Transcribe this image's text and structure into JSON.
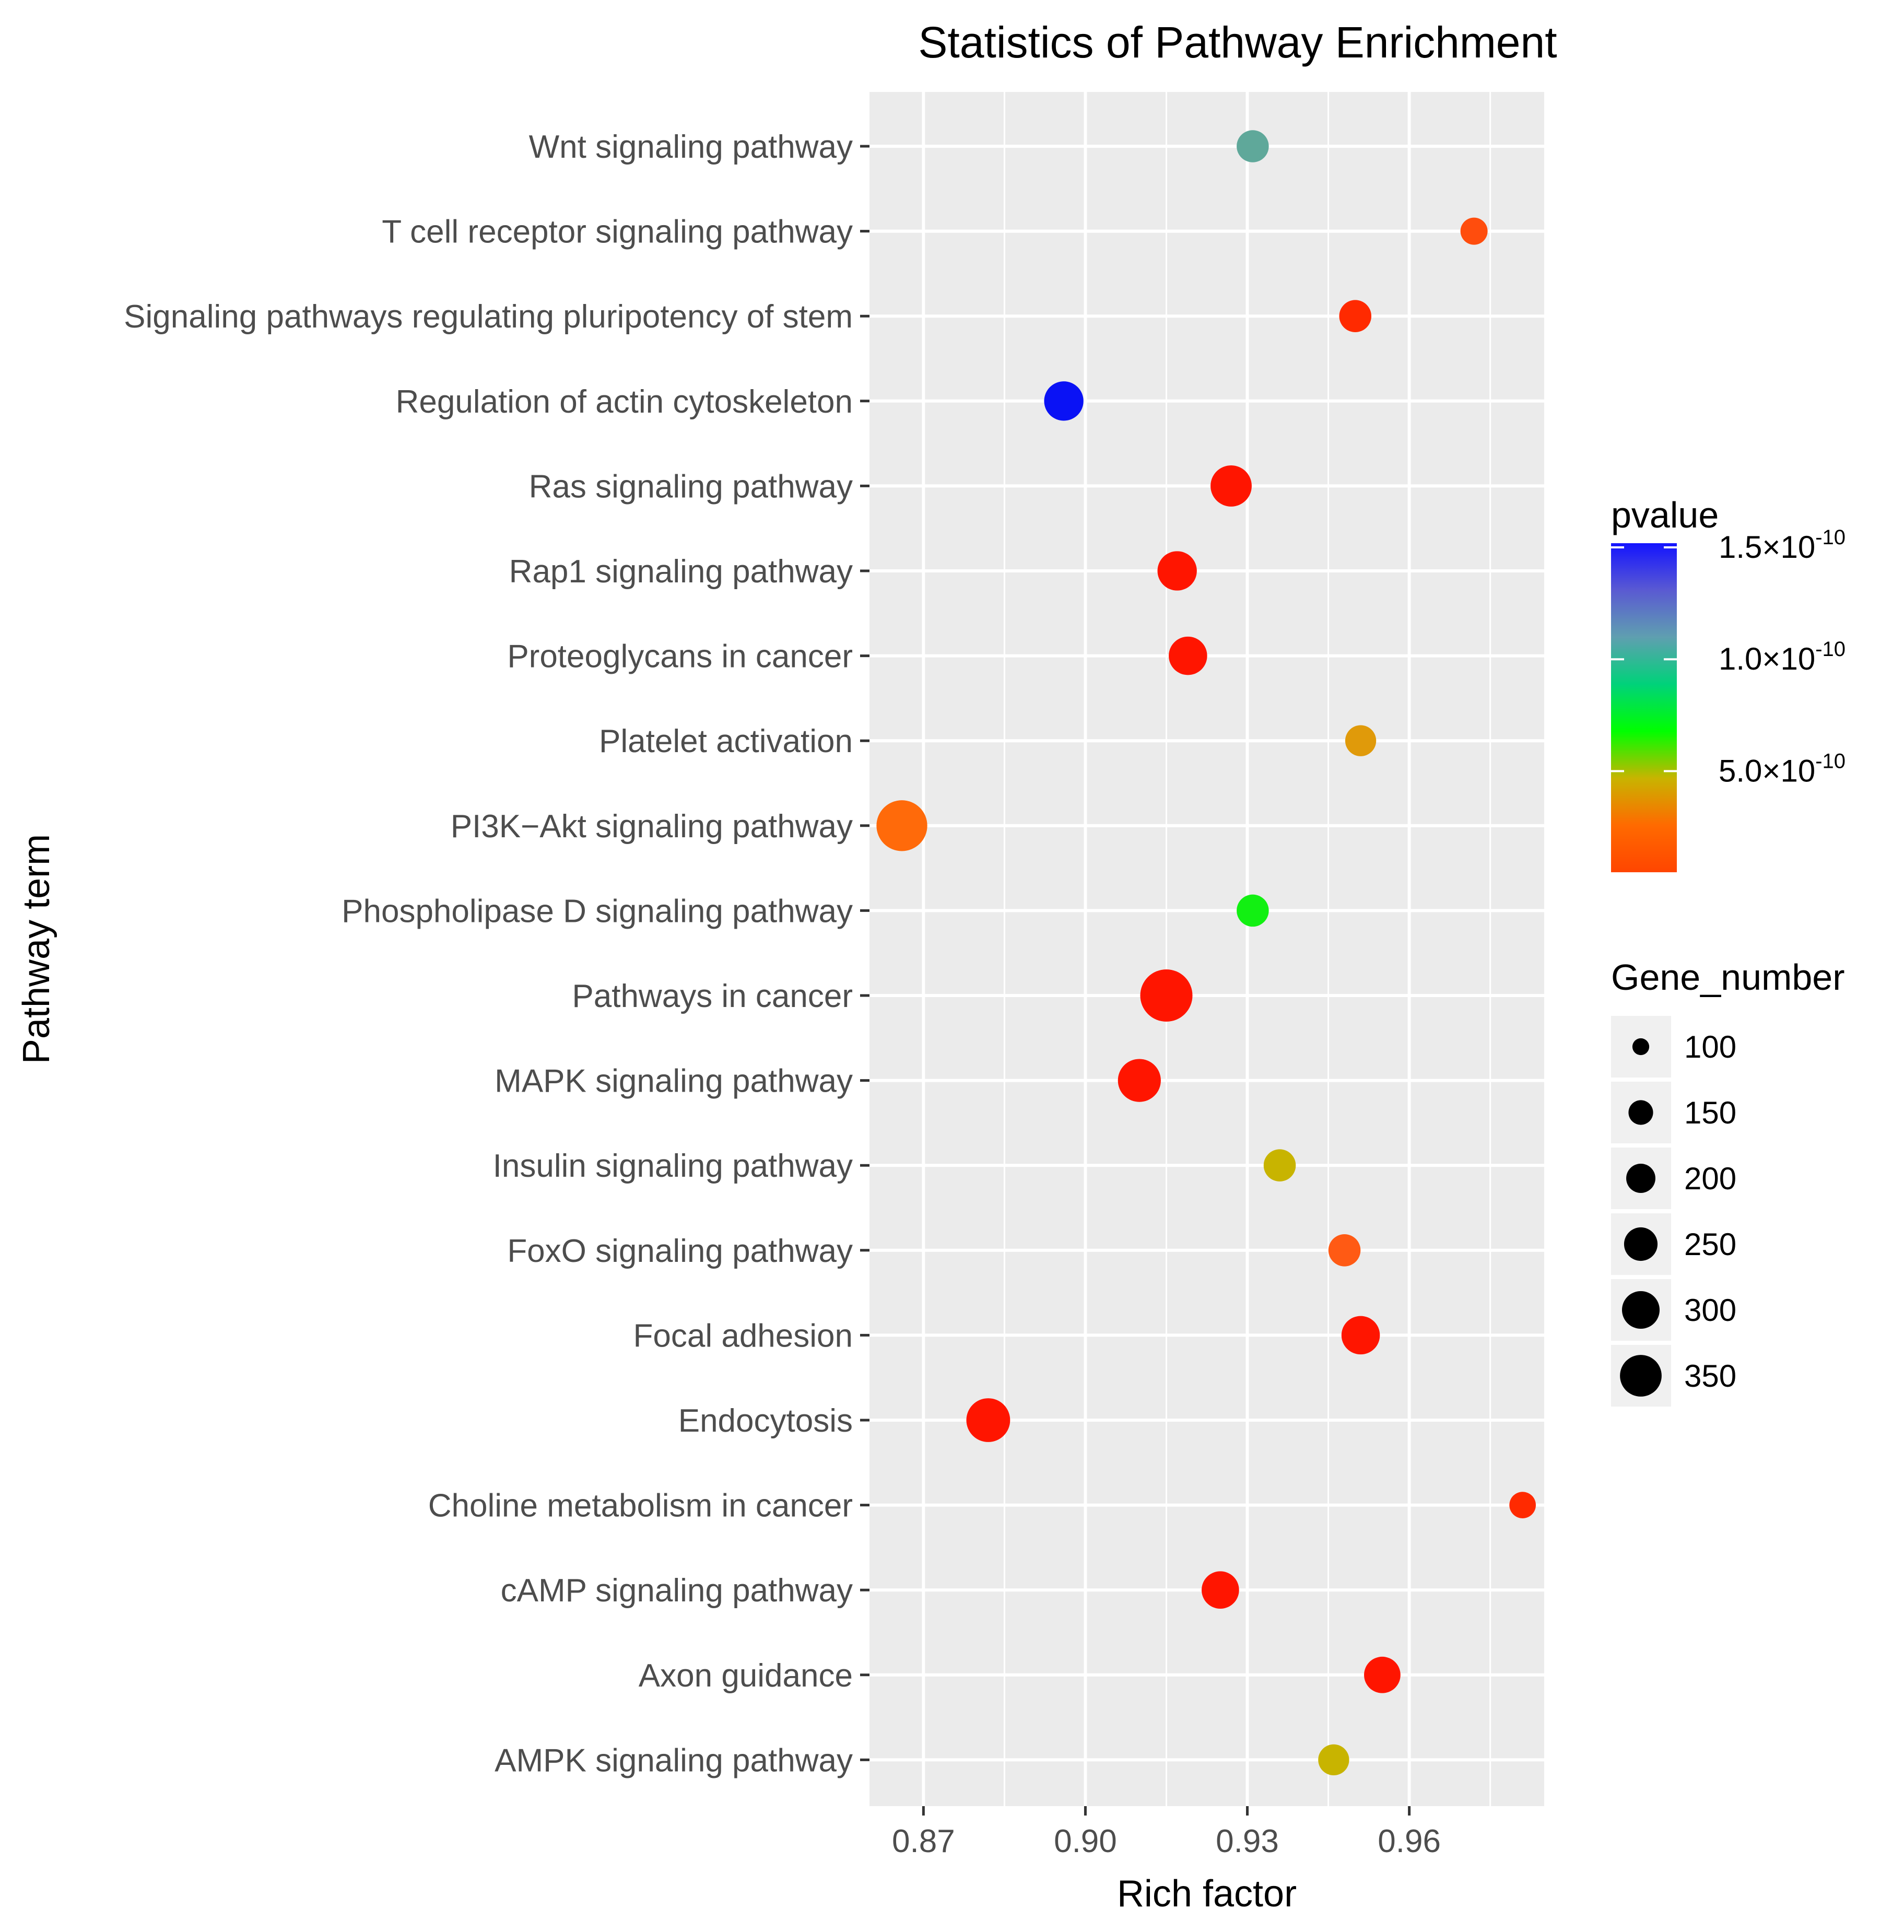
{
  "chart_data": {
    "type": "scatter",
    "title": "Statistics of Pathway Enrichment",
    "xlabel": "Rich factor",
    "ylabel": "Pathway term",
    "xlim": [
      0.86,
      0.985
    ],
    "xticks": [
      0.87,
      0.9,
      0.93,
      0.96
    ],
    "xtick_labels": [
      "0.87",
      "0.90",
      "0.93",
      "0.96"
    ],
    "grid": true,
    "categories": [
      "Wnt signaling pathway",
      "T cell receptor signaling pathway",
      "Signaling pathways regulating pluripotency of stem",
      "Regulation of actin cytoskeleton",
      "Ras signaling pathway",
      "Rap1 signaling pathway",
      "Proteoglycans in cancer",
      "Platelet activation",
      "PI3K−Akt signaling pathway",
      "Phospholipase D signaling pathway",
      "Pathways in cancer",
      "MAPK signaling pathway",
      "Insulin signaling pathway",
      "FoxO signaling pathway",
      "Focal adhesion",
      "Endocytosis",
      "Choline metabolism in cancer",
      "cAMP signaling pathway",
      "Axon guidance",
      "AMPK signaling pathway"
    ],
    "points": [
      {
        "pathway": "Wnt signaling pathway",
        "rich_factor": 0.931,
        "gene_number": 140,
        "color": "#5fa89a"
      },
      {
        "pathway": "T cell receptor signaling pathway",
        "rich_factor": 0.972,
        "gene_number": 100,
        "color": "#ff4d0d"
      },
      {
        "pathway": "Signaling pathways regulating pluripotency of stem",
        "rich_factor": 0.95,
        "gene_number": 140,
        "color": "#ff2a00"
      },
      {
        "pathway": "Regulation of actin cytoskeleton",
        "rich_factor": 0.896,
        "gene_number": 210,
        "color": "#0a12f5"
      },
      {
        "pathway": "Ras signaling pathway",
        "rich_factor": 0.927,
        "gene_number": 230,
        "color": "#ff1500"
      },
      {
        "pathway": "Rap1 signaling pathway",
        "rich_factor": 0.917,
        "gene_number": 210,
        "color": "#ff1500"
      },
      {
        "pathway": "Proteoglycans in cancer",
        "rich_factor": 0.919,
        "gene_number": 200,
        "color": "#ff1500"
      },
      {
        "pathway": "Platelet activation",
        "rich_factor": 0.951,
        "gene_number": 130,
        "color": "#e09a0a"
      },
      {
        "pathway": "PI3K−Akt signaling pathway",
        "rich_factor": 0.866,
        "gene_number": 350,
        "color": "#ff6a0a"
      },
      {
        "pathway": "Phospholipase D signaling pathway",
        "rich_factor": 0.931,
        "gene_number": 140,
        "color": "#12f012"
      },
      {
        "pathway": "Pathways in cancer",
        "rich_factor": 0.915,
        "gene_number": 370,
        "color": "#ff1500"
      },
      {
        "pathway": "MAPK signaling pathway",
        "rich_factor": 0.91,
        "gene_number": 250,
        "color": "#ff1500"
      },
      {
        "pathway": "Insulin signaling pathway",
        "rich_factor": 0.936,
        "gene_number": 140,
        "color": "#c8b400"
      },
      {
        "pathway": "FoxO signaling pathway",
        "rich_factor": 0.948,
        "gene_number": 140,
        "color": "#ff5a14"
      },
      {
        "pathway": "Focal adhesion",
        "rich_factor": 0.951,
        "gene_number": 200,
        "color": "#ff1500"
      },
      {
        "pathway": "Endocytosis",
        "rich_factor": 0.882,
        "gene_number": 260,
        "color": "#ff1500"
      },
      {
        "pathway": "Choline metabolism in cancer",
        "rich_factor": 0.981,
        "gene_number": 95,
        "color": "#ff2a00"
      },
      {
        "pathway": "cAMP signaling pathway",
        "rich_factor": 0.925,
        "gene_number": 190,
        "color": "#ff1500"
      },
      {
        "pathway": "Axon guidance",
        "rich_factor": 0.955,
        "gene_number": 180,
        "color": "#ff1500"
      },
      {
        "pathway": "AMPK signaling pathway",
        "rich_factor": 0.946,
        "gene_number": 130,
        "color": "#c8b400"
      }
    ],
    "legend_color": {
      "title": "pvalue",
      "labels": [
        {
          "mantissa": "1.5×10",
          "exponent": "-10",
          "fraction": 1.0
        },
        {
          "mantissa": "1.0×10",
          "exponent": "-10",
          "fraction": 0.66
        },
        {
          "mantissa": "5.0×10",
          "exponent": "-10",
          "fraction": 0.32
        }
      ],
      "gradient": [
        "#ff4500",
        "#ff6a00",
        "#c8b400",
        "#00ff00",
        "#00d27a",
        "#5f9fb0",
        "#5a5ad2",
        "#1414ff"
      ]
    },
    "legend_size": {
      "title": "Gene_number",
      "entries": [
        100,
        150,
        200,
        250,
        300,
        350
      ]
    },
    "panel_bg": "#ebebeb",
    "grid_color": "#ffffff"
  }
}
